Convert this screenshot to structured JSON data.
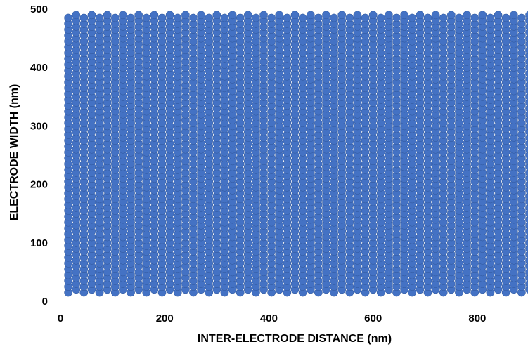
{
  "chart_data": {
    "type": "scatter",
    "title": "",
    "xlabel": "INTER-ELECTRODE DISTANCE (nm)",
    "ylabel": "ELECTRODE WIDTH (nm)",
    "xlim": [
      0,
      900
    ],
    "ylim": [
      0,
      500
    ],
    "xticks": [
      "0",
      "200",
      "400",
      "600",
      "800"
    ],
    "yticks": [
      "0",
      "100",
      "200",
      "300",
      "400",
      "500"
    ],
    "grid": false,
    "legend": "none",
    "marker_color": "#4472C4",
    "marker_edge_color": "#2F5597",
    "series": [
      {
        "grid_pattern": "hexagonal",
        "x_start": 15,
        "x_step": 15,
        "x_end": 900,
        "y_start_even_column": 15,
        "y_start_odd_column": 20,
        "y_step": 10,
        "y_end_even_column": 485,
        "y_end_odd_column": 490
      }
    ]
  }
}
